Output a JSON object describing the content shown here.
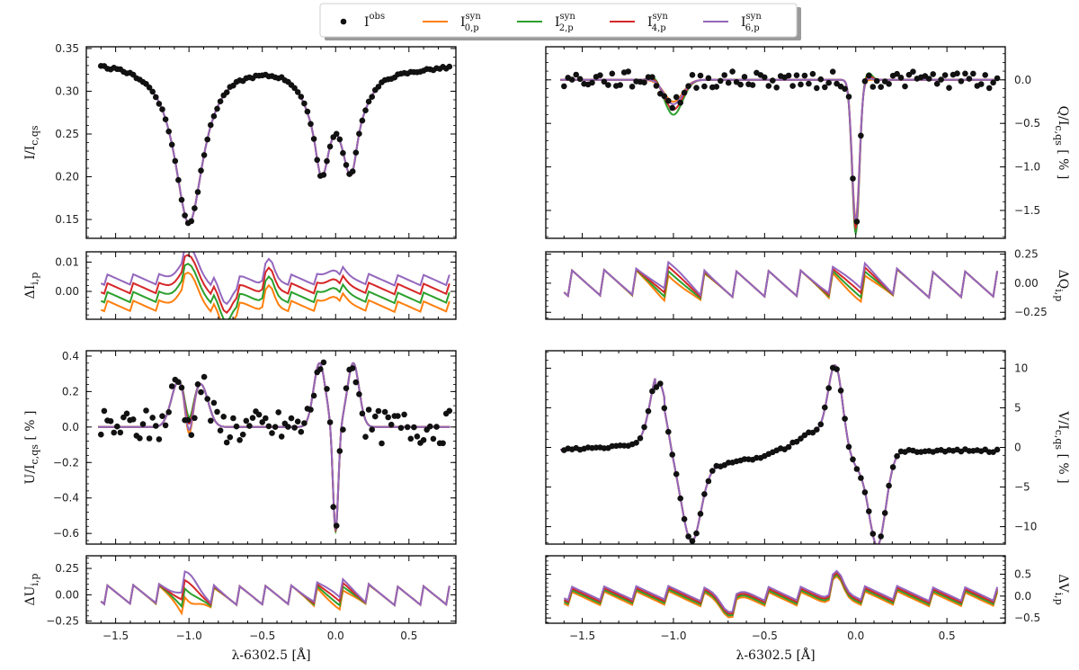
{
  "legend": {
    "items": [
      {
        "key": "obs",
        "base": "I",
        "sup": "obs",
        "sub": "",
        "color": "#111111",
        "marker": "dot"
      },
      {
        "key": "s0",
        "base": "I",
        "sup": "syn",
        "sub": "0,p",
        "color": "#ff7f0e",
        "marker": "line"
      },
      {
        "key": "s2",
        "base": "I",
        "sup": "syn",
        "sub": "2,p",
        "color": "#2ca02c",
        "marker": "line"
      },
      {
        "key": "s4",
        "base": "I",
        "sup": "syn",
        "sub": "4,p",
        "color": "#d62728",
        "marker": "line"
      },
      {
        "key": "s6",
        "base": "I",
        "sup": "syn",
        "sub": "6,p",
        "color": "#9467bd",
        "marker": "line"
      }
    ]
  },
  "x_axis_label": "λ-6302.5 [Å]",
  "chart_data": [
    {
      "id": "I",
      "type": "line",
      "ylabel": "I/I_c,qs",
      "ylabel_side": "left",
      "xlim": [
        -1.7,
        0.82
      ],
      "ylim": [
        0.128,
        0.352
      ],
      "yticks": [
        "0.15",
        "0.20",
        "0.25",
        "0.30",
        "0.35"
      ],
      "show_xticklabels": false
    },
    {
      "id": "Q",
      "type": "line",
      "ylabel": "Q/I_c,qs [ % ]",
      "ylabel_side": "right",
      "xlim": [
        -1.7,
        0.82
      ],
      "ylim": [
        -1.82,
        0.38
      ],
      "yticks": [
        "-1.5",
        "-1.0",
        "-0.5",
        "0.0"
      ],
      "show_xticklabels": false
    },
    {
      "id": "dI",
      "type": "line",
      "ylabel": "ΔI_i,p",
      "ylabel_side": "left",
      "xlim": [
        -1.7,
        0.82
      ],
      "ylim": [
        -0.0095,
        0.0135
      ],
      "yticks": [
        "0.00",
        "0.01"
      ],
      "show_xticklabels": false
    },
    {
      "id": "dQ",
      "type": "line",
      "ylabel": "ΔQ_i,p",
      "ylabel_side": "right",
      "xlim": [
        -1.7,
        0.82
      ],
      "ylim": [
        -0.31,
        0.27
      ],
      "yticks": [
        "-0.25",
        "0.00",
        "0.25"
      ],
      "show_xticklabels": false
    },
    {
      "id": "U",
      "type": "line",
      "ylabel": "U/I_c,qs [ % ]",
      "ylabel_side": "left",
      "xlim": [
        -1.7,
        0.82
      ],
      "ylim": [
        -0.66,
        0.43
      ],
      "yticks": [
        "-0.6",
        "-0.4",
        "-0.2",
        "0.0",
        "0.2",
        "0.4"
      ],
      "show_xticklabels": false
    },
    {
      "id": "V",
      "type": "line",
      "ylabel": "V/I_c,qs [ % ]",
      "ylabel_side": "right",
      "xlim": [
        -1.7,
        0.82
      ],
      "ylim": [
        -12.2,
        12.2
      ],
      "yticks": [
        "-10",
        "-5",
        "0",
        "5",
        "10"
      ],
      "show_xticklabels": false
    },
    {
      "id": "dU",
      "type": "line",
      "ylabel": "ΔU_i,p",
      "ylabel_side": "left",
      "xlim": [
        -1.7,
        0.82
      ],
      "ylim": [
        -0.27,
        0.37
      ],
      "yticks": [
        "-0.25",
        "0.00",
        "0.25"
      ],
      "xticks": [
        "-1.5",
        "-1.0",
        "-0.5",
        "0.0",
        "0.5"
      ],
      "show_xticklabels": true
    },
    {
      "id": "dV",
      "type": "line",
      "ylabel": "ΔV_i,p",
      "ylabel_side": "right",
      "xlim": [
        -1.7,
        0.82
      ],
      "ylim": [
        -0.62,
        0.92
      ],
      "yticks": [
        "-0.5",
        "0.0",
        "0.5"
      ],
      "xticks": [
        "-1.5",
        "-1.0",
        "-0.5",
        "0.0",
        "0.5"
      ],
      "show_xticklabels": true
    }
  ]
}
